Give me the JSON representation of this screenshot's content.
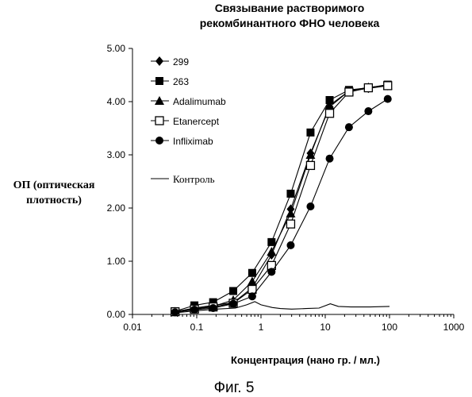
{
  "chart_data": {
    "type": "line",
    "title_lines": [
      "Связывание растворимого",
      "рекомбинантного ФНО человека"
    ],
    "ylabel_lines": [
      "ОП (оптическая",
      "плотность)"
    ],
    "xlabel": "Концентрация (нано гр. / мл.)",
    "caption": "Фиг. 5",
    "xscale": "log",
    "xlim": [
      0.01,
      1000
    ],
    "ylim": [
      0,
      5
    ],
    "xticks": [
      "0.01",
      "0.1",
      "1",
      "10",
      "100",
      "1000"
    ],
    "yticks": [
      "0.00",
      "1.00",
      "2.00",
      "3.00",
      "4.00",
      "5.00"
    ],
    "grid": false,
    "legend_position": "top-left",
    "series": [
      {
        "name": "299",
        "marker": "diamond-filled",
        "x": [
          0.046,
          0.092,
          0.18,
          0.37,
          0.73,
          1.46,
          2.9,
          5.9,
          11.7,
          23.4,
          46.9,
          93.8
        ],
        "y": [
          0.05,
          0.12,
          0.17,
          0.22,
          0.5,
          1.12,
          1.98,
          3.03,
          3.9,
          4.2,
          4.25,
          4.3
        ]
      },
      {
        "name": "263",
        "marker": "square-filled",
        "x": [
          0.046,
          0.092,
          0.18,
          0.37,
          0.73,
          1.46,
          2.9,
          5.9,
          11.7,
          23.4,
          46.9,
          93.8
        ],
        "y": [
          0.06,
          0.17,
          0.23,
          0.44,
          0.78,
          1.36,
          2.27,
          3.42,
          4.03,
          4.22,
          4.26,
          4.32
        ]
      },
      {
        "name": "Adalimumab",
        "marker": "triangle-filled",
        "x": [
          0.046,
          0.092,
          0.18,
          0.37,
          0.73,
          1.46,
          2.9,
          5.9,
          11.7,
          23.4,
          46.9,
          93.8
        ],
        "y": [
          0.05,
          0.11,
          0.15,
          0.27,
          0.62,
          1.18,
          1.9,
          3.0,
          3.93,
          4.2,
          4.27,
          4.3
        ]
      },
      {
        "name": "Etanercept",
        "marker": "square-open",
        "x": [
          0.046,
          0.092,
          0.18,
          0.37,
          0.73,
          1.46,
          2.9,
          5.9,
          11.7,
          23.4,
          46.9,
          93.8
        ],
        "y": [
          0.05,
          0.1,
          0.14,
          0.21,
          0.47,
          0.92,
          1.7,
          2.8,
          3.78,
          4.18,
          4.26,
          4.3
        ]
      },
      {
        "name": "Infliximab",
        "marker": "circle-filled",
        "x": [
          0.046,
          0.092,
          0.18,
          0.37,
          0.73,
          1.46,
          2.9,
          5.9,
          11.7,
          23.4,
          46.9,
          93.8
        ],
        "y": [
          0.04,
          0.09,
          0.12,
          0.2,
          0.34,
          0.8,
          1.3,
          2.03,
          2.93,
          3.52,
          3.82,
          4.05
        ]
      },
      {
        "name": "Контроль",
        "marker": "none",
        "x": [
          0.046,
          0.1,
          0.2,
          0.4,
          0.6,
          0.8,
          1.0,
          1.5,
          2,
          3,
          5,
          8,
          12,
          16,
          25,
          50,
          100
        ],
        "y": [
          0.03,
          0.07,
          0.1,
          0.12,
          0.18,
          0.24,
          0.18,
          0.13,
          0.11,
          0.1,
          0.11,
          0.12,
          0.2,
          0.15,
          0.14,
          0.14,
          0.15
        ]
      }
    ]
  }
}
